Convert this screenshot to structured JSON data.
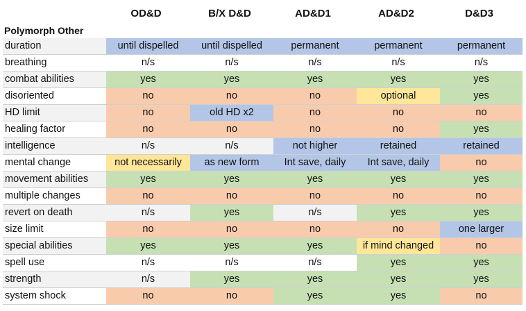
{
  "headers": [
    "OD&D",
    "B/X D&D",
    "AD&D1",
    "AD&D2",
    "D&D3"
  ],
  "title": "Polymorph Other",
  "colors": {
    "blue": "#b4c6e7",
    "green": "#c6e0b4",
    "orange": "#f8cbad",
    "yellow": "#ffe699",
    "gray": "#f2f2f2"
  },
  "rows": [
    {
      "label": "duration",
      "cells": [
        {
          "text": "until dispelled",
          "color": "blue"
        },
        {
          "text": "until dispelled",
          "color": "blue"
        },
        {
          "text": "permanent",
          "color": "blue"
        },
        {
          "text": "permanent",
          "color": "blue"
        },
        {
          "text": "permanent",
          "color": "blue"
        }
      ]
    },
    {
      "label": "breathing",
      "cells": [
        {
          "text": "n/s",
          "color": "white"
        },
        {
          "text": "n/s",
          "color": "white"
        },
        {
          "text": "n/s",
          "color": "white"
        },
        {
          "text": "n/s",
          "color": "white"
        },
        {
          "text": "n/s",
          "color": "white"
        }
      ]
    },
    {
      "label": "combat abilities",
      "cells": [
        {
          "text": "yes",
          "color": "green"
        },
        {
          "text": "yes",
          "color": "green"
        },
        {
          "text": "yes",
          "color": "green"
        },
        {
          "text": "yes",
          "color": "green"
        },
        {
          "text": "yes",
          "color": "green"
        }
      ]
    },
    {
      "label": "disoriented",
      "cells": [
        {
          "text": "no",
          "color": "orange"
        },
        {
          "text": "no",
          "color": "orange"
        },
        {
          "text": "no",
          "color": "orange"
        },
        {
          "text": "optional",
          "color": "yellow"
        },
        {
          "text": "yes",
          "color": "green"
        }
      ]
    },
    {
      "label": "HD limit",
      "cells": [
        {
          "text": "no",
          "color": "orange"
        },
        {
          "text": "old HD x2",
          "color": "blue"
        },
        {
          "text": "no",
          "color": "orange"
        },
        {
          "text": "no",
          "color": "orange"
        },
        {
          "text": "no",
          "color": "orange"
        }
      ]
    },
    {
      "label": "healing factor",
      "cells": [
        {
          "text": "no",
          "color": "orange"
        },
        {
          "text": "no",
          "color": "orange"
        },
        {
          "text": "no",
          "color": "orange"
        },
        {
          "text": "no",
          "color": "orange"
        },
        {
          "text": "yes",
          "color": "green"
        }
      ]
    },
    {
      "label": "intelligence",
      "cells": [
        {
          "text": "n/s",
          "color": "gray"
        },
        {
          "text": "n/s",
          "color": "gray"
        },
        {
          "text": "not higher",
          "color": "blue"
        },
        {
          "text": "retained",
          "color": "blue"
        },
        {
          "text": "retained",
          "color": "blue"
        }
      ]
    },
    {
      "label": "mental change",
      "cells": [
        {
          "text": "not necessarily",
          "color": "yellow"
        },
        {
          "text": "as new form",
          "color": "blue"
        },
        {
          "text": "Int save, daily",
          "color": "blue"
        },
        {
          "text": "Int save, daily",
          "color": "blue"
        },
        {
          "text": "no",
          "color": "orange"
        }
      ]
    },
    {
      "label": "movement abilities",
      "cells": [
        {
          "text": "yes",
          "color": "green"
        },
        {
          "text": "yes",
          "color": "green"
        },
        {
          "text": "yes",
          "color": "green"
        },
        {
          "text": "yes",
          "color": "green"
        },
        {
          "text": "yes",
          "color": "green"
        }
      ]
    },
    {
      "label": "multiple changes",
      "cells": [
        {
          "text": "no",
          "color": "orange"
        },
        {
          "text": "no",
          "color": "orange"
        },
        {
          "text": "no",
          "color": "orange"
        },
        {
          "text": "no",
          "color": "orange"
        },
        {
          "text": "no",
          "color": "orange"
        }
      ]
    },
    {
      "label": "revert on death",
      "cells": [
        {
          "text": "n/s",
          "color": "gray"
        },
        {
          "text": "yes",
          "color": "green"
        },
        {
          "text": "n/s",
          "color": "gray"
        },
        {
          "text": "yes",
          "color": "green"
        },
        {
          "text": "yes",
          "color": "green"
        }
      ]
    },
    {
      "label": "size limit",
      "cells": [
        {
          "text": "no",
          "color": "orange"
        },
        {
          "text": "no",
          "color": "orange"
        },
        {
          "text": "no",
          "color": "orange"
        },
        {
          "text": "no",
          "color": "orange"
        },
        {
          "text": "one larger",
          "color": "blue"
        }
      ]
    },
    {
      "label": "special abilities",
      "cells": [
        {
          "text": "yes",
          "color": "green"
        },
        {
          "text": "yes",
          "color": "green"
        },
        {
          "text": "yes",
          "color": "green"
        },
        {
          "text": "if mind changed",
          "color": "yellow"
        },
        {
          "text": "no",
          "color": "orange"
        }
      ]
    },
    {
      "label": "spell use",
      "cells": [
        {
          "text": "n/s",
          "color": "white"
        },
        {
          "text": "n/s",
          "color": "white"
        },
        {
          "text": "n/s",
          "color": "white"
        },
        {
          "text": "yes",
          "color": "green"
        },
        {
          "text": "yes",
          "color": "green"
        }
      ]
    },
    {
      "label": "strength",
      "cells": [
        {
          "text": "n/s",
          "color": "gray"
        },
        {
          "text": "yes",
          "color": "green"
        },
        {
          "text": "yes",
          "color": "green"
        },
        {
          "text": "yes",
          "color": "green"
        },
        {
          "text": "yes",
          "color": "green"
        }
      ]
    },
    {
      "label": "system shock",
      "cells": [
        {
          "text": "no",
          "color": "orange"
        },
        {
          "text": "no",
          "color": "orange"
        },
        {
          "text": "yes",
          "color": "green"
        },
        {
          "text": "yes",
          "color": "green"
        },
        {
          "text": "no",
          "color": "orange"
        }
      ]
    }
  ]
}
